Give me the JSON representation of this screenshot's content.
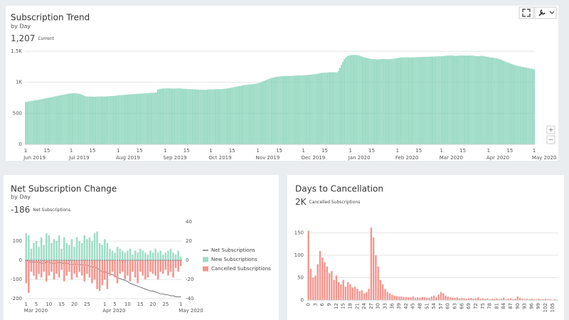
{
  "chart_data": [
    {
      "type": "bar",
      "title": "Subscription Trend",
      "subtitle": "by Day",
      "kpi": "1,207",
      "kpi_label": "Current",
      "color": "#7fd0b4",
      "grid": true,
      "ylim": [
        0,
        1500
      ],
      "yticks": [
        0,
        500,
        {
          "value": 1000,
          "label": "1K"
        },
        {
          "value": 1500,
          "label": "1.5K"
        }
      ],
      "xgroups": [
        {
          "label": "Jun 2019",
          "span": 30
        },
        {
          "label": "Jul 2019",
          "span": 31
        },
        {
          "label": "Aug 2019",
          "span": 31
        },
        {
          "label": "Sep 2019",
          "span": 30
        },
        {
          "label": "Oct 2019",
          "span": 31
        },
        {
          "label": "Nov 2019",
          "span": 30
        },
        {
          "label": "Dec 2019",
          "span": 31
        },
        {
          "label": "Jan 2020",
          "span": 31
        },
        {
          "label": "Feb 2020",
          "span": 29
        },
        {
          "label": "Mar 2020",
          "span": 31
        },
        {
          "label": "Apr 2020",
          "span": 30
        },
        {
          "label": "May 2020",
          "span": 1
        }
      ],
      "categories": [
        "1",
        null,
        null,
        null,
        null,
        null,
        null,
        null,
        null,
        null,
        null,
        null,
        null,
        null,
        "15",
        null,
        null,
        null,
        null,
        null,
        null,
        null,
        null,
        null,
        null,
        null,
        null,
        null,
        null,
        null,
        "1",
        null,
        null,
        null,
        null,
        null,
        null,
        null,
        null,
        null,
        null,
        null,
        null,
        null,
        "15",
        null,
        null,
        null,
        null,
        null,
        null,
        null,
        null,
        null,
        null,
        null,
        null,
        null,
        null,
        null,
        null,
        "1",
        null,
        null,
        null,
        null,
        null,
        null,
        null,
        null,
        null,
        null,
        null,
        null,
        null,
        "15",
        null,
        null,
        null,
        null,
        null,
        null,
        null,
        null,
        null,
        null,
        null,
        null,
        null,
        null,
        null,
        null,
        "1",
        null,
        null,
        null,
        null,
        null,
        null,
        null,
        null,
        null,
        null,
        null,
        null,
        null,
        "15",
        null,
        null,
        null,
        null,
        null,
        null,
        null,
        null,
        null,
        null,
        null,
        null,
        null,
        null,
        null,
        "1",
        null,
        null,
        null,
        null,
        null,
        null,
        null,
        null,
        null,
        null,
        null,
        null,
        null,
        "15",
        null,
        null,
        null,
        null,
        null,
        null,
        null,
        null,
        null,
        null,
        null,
        null,
        null,
        null,
        null,
        null,
        "1",
        null,
        null,
        null,
        null,
        null,
        null,
        null,
        null,
        null,
        null,
        null,
        null,
        null,
        "15",
        null,
        null,
        null,
        null,
        null,
        null,
        null,
        null,
        null,
        null,
        null,
        null,
        null,
        null,
        null,
        "1",
        null,
        null,
        null,
        null,
        null,
        null,
        null,
        null,
        null,
        null,
        null,
        null,
        null,
        "15",
        null,
        null,
        null,
        null,
        null,
        null,
        null,
        null,
        null,
        null,
        null,
        null,
        null,
        null,
        null,
        null,
        "1",
        null,
        null,
        null,
        null,
        null,
        null,
        null,
        null,
        null,
        null,
        null,
        null,
        null,
        "15",
        null,
        null,
        null,
        null,
        null,
        null,
        null,
        null,
        null,
        null,
        null,
        null,
        null,
        null,
        null,
        null,
        "1",
        null,
        null,
        null,
        null,
        null,
        null,
        null,
        null,
        null,
        null,
        null,
        null,
        null,
        "15",
        null,
        null,
        null,
        null,
        null,
        null,
        null,
        null,
        null,
        null,
        null,
        null,
        null,
        null,
        "1",
        null,
        null,
        null,
        null,
        null,
        null,
        null,
        null,
        null,
        null,
        null,
        null,
        null,
        "15",
        null,
        null,
        null,
        null,
        null,
        null,
        null,
        null,
        null,
        null,
        null,
        null,
        null,
        null,
        null,
        null,
        "1",
        null,
        null,
        null,
        null,
        null,
        null,
        null,
        null,
        null,
        null,
        null,
        null,
        null,
        "15",
        null,
        null,
        null,
        null,
        null,
        null,
        null,
        null,
        null,
        null,
        null,
        null,
        null,
        null,
        null,
        "1"
      ],
      "values": [
        680,
        685,
        690,
        695,
        700,
        705,
        710,
        712,
        715,
        720,
        725,
        730,
        735,
        740,
        745,
        750,
        755,
        760,
        765,
        770,
        775,
        780,
        785,
        790,
        795,
        800,
        805,
        810,
        815,
        820,
        820,
        822,
        825,
        822,
        820,
        815,
        810,
        800,
        790,
        780,
        775,
        772,
        770,
        770,
        770,
        768,
        768,
        770,
        770,
        772,
        772,
        770,
        770,
        772,
        775,
        775,
        778,
        780,
        780,
        782,
        785,
        788,
        790,
        792,
        795,
        798,
        800,
        802,
        805,
        805,
        808,
        810,
        810,
        812,
        815,
        815,
        818,
        820,
        820,
        822,
        825,
        825,
        828,
        830,
        830,
        832,
        835,
        880,
        890,
        895,
        898,
        900,
        900,
        902,
        902,
        900,
        900,
        898,
        898,
        900,
        900,
        902,
        900,
        898,
        895,
        895,
        892,
        890,
        890,
        888,
        888,
        885,
        885,
        882,
        882,
        880,
        880,
        880,
        878,
        880,
        882,
        885,
        885,
        885,
        888,
        888,
        890,
        890,
        888,
        890,
        892,
        895,
        898,
        900,
        905,
        910,
        915,
        920,
        925,
        930,
        935,
        940,
        945,
        950,
        955,
        958,
        960,
        962,
        965,
        968,
        970,
        975,
        980,
        985,
        990,
        1000,
        1010,
        1020,
        1030,
        1040,
        1050,
        1060,
        1070,
        1075,
        1080,
        1085,
        1090,
        1092,
        1095,
        1098,
        1100,
        1100,
        1102,
        1100,
        1100,
        1102,
        1105,
        1105,
        1108,
        1110,
        1110,
        1110,
        1112,
        1112,
        1115,
        1115,
        1118,
        1120,
        1122,
        1125,
        1128,
        1130,
        1135,
        1140,
        1145,
        1150,
        1152,
        1155,
        1155,
        1158,
        1160,
        1160,
        1160,
        1162,
        1160,
        1160,
        1180,
        1230,
        1280,
        1330,
        1370,
        1400,
        1420,
        1430,
        1435,
        1438,
        1440,
        1440,
        1438,
        1435,
        1430,
        1420,
        1410,
        1400,
        1395,
        1390,
        1385,
        1380,
        1375,
        1372,
        1370,
        1370,
        1368,
        1370,
        1372,
        1375,
        1375,
        1372,
        1370,
        1370,
        1372,
        1375,
        1378,
        1380,
        1385,
        1390,
        1395,
        1398,
        1400,
        1400,
        1400,
        1402,
        1402,
        1400,
        1400,
        1400,
        1402,
        1402,
        1405,
        1405,
        1405,
        1408,
        1408,
        1410,
        1410,
        1410,
        1412,
        1412,
        1415,
        1415,
        1415,
        1418,
        1418,
        1420,
        1420,
        1422,
        1425,
        1428,
        1430,
        1430,
        1432,
        1430,
        1428,
        1425,
        1425,
        1428,
        1430,
        1432,
        1432,
        1430,
        1428,
        1428,
        1430,
        1432,
        1430,
        1428,
        1425,
        1420,
        1420,
        1422,
        1425,
        1425,
        1420,
        1415,
        1410,
        1405,
        1400,
        1398,
        1395,
        1390,
        1385,
        1380,
        1372,
        1365,
        1355,
        1345,
        1335,
        1325,
        1315,
        1305,
        1295,
        1285,
        1278,
        1270,
        1265,
        1260,
        1255,
        1250,
        1245,
        1240,
        1235,
        1230,
        1225,
        1220,
        1215,
        1207
      ]
    },
    {
      "type": "combo",
      "title": "Net Subscription Change",
      "subtitle": "by Day",
      "kpi": "-186",
      "kpi_label": "Net Subscriptions",
      "grid": true,
      "ylim": [
        -200,
        200
      ],
      "yticks": [
        -200,
        -100,
        0,
        100
      ],
      "y2lim": [
        -40,
        40
      ],
      "y2ticks": [
        -40,
        -20,
        0,
        20,
        40
      ],
      "xgroups": [
        {
          "label": "Mar 2020",
          "span": 31
        },
        {
          "label": "Apr 2020",
          "span": 30
        },
        {
          "label": "May 2020",
          "span": 1
        }
      ],
      "categories": [
        "1",
        null,
        null,
        null,
        "5",
        null,
        null,
        null,
        null,
        "10",
        null,
        null,
        null,
        null,
        "15",
        null,
        null,
        null,
        null,
        "20",
        null,
        null,
        null,
        null,
        "25",
        null,
        null,
        null,
        null,
        null,
        null,
        "1",
        null,
        null,
        null,
        "5",
        null,
        null,
        null,
        null,
        "10",
        null,
        null,
        null,
        null,
        "15",
        null,
        null,
        null,
        null,
        "20",
        null,
        null,
        null,
        null,
        "25",
        null,
        null,
        null,
        null,
        null,
        "1"
      ],
      "series": [
        {
          "name": "Net Subscriptions",
          "color": "#555555",
          "axis": "y2",
          "values": [
            0,
            -1,
            -2,
            -2,
            -2,
            -2,
            -3,
            -3,
            -2,
            -2,
            -3,
            -3,
            -3,
            -2,
            -3,
            -3,
            -3,
            -4,
            -4,
            -4,
            -4,
            -4,
            -5,
            -5,
            -5,
            -6,
            -7,
            -7,
            -8,
            -10,
            -12,
            -12,
            -13,
            -14,
            -15,
            -16,
            -18,
            -19,
            -20,
            -21,
            -22,
            -24,
            -25,
            -26,
            -27,
            -28,
            -29,
            -30,
            -31,
            -32,
            -32,
            -33,
            -34,
            -35,
            -35,
            -36,
            -36,
            -37,
            -37,
            -38,
            -38,
            -38
          ]
        },
        {
          "name": "New Subscriptions",
          "color": "#9edcc6",
          "values": [
            140,
            130,
            60,
            90,
            100,
            70,
            120,
            80,
            140,
            130,
            90,
            110,
            100,
            130,
            60,
            120,
            90,
            80,
            110,
            70,
            120,
            100,
            90,
            130,
            110,
            120,
            100,
            140,
            150,
            90,
            80,
            110,
            90,
            60,
            50,
            40,
            70,
            60,
            50,
            40,
            50,
            60,
            30,
            50,
            40,
            60,
            50,
            40,
            30,
            50,
            40,
            60,
            40,
            50,
            30,
            40,
            50,
            60,
            40,
            30,
            50,
            20
          ]
        },
        {
          "name": "Cancelled Subscriptions",
          "color": "#f4948d",
          "values": [
            -120,
            -170,
            -60,
            -80,
            -100,
            -70,
            -90,
            -60,
            -110,
            -80,
            -60,
            -100,
            -70,
            -90,
            -50,
            -110,
            -80,
            -60,
            -100,
            -70,
            -90,
            -60,
            -80,
            -110,
            -70,
            -90,
            -120,
            -100,
            -150,
            -160,
            -130,
            -100,
            -150,
            -80,
            -60,
            -90,
            -120,
            -70,
            -60,
            -100,
            -80,
            -110,
            -60,
            -90,
            -120,
            -60,
            -80,
            -100,
            -90,
            -60,
            -70,
            -80,
            -100,
            -60,
            -70,
            -50,
            -80,
            -60,
            -90,
            -40,
            -60,
            -30
          ]
        }
      ]
    },
    {
      "type": "bar",
      "title": "Days to Cancellation",
      "kpi": "2K",
      "kpi_label": "Cancelled Subscriptions",
      "color": "#f4948d",
      "grid": true,
      "ylim": [
        0,
        170
      ],
      "yticks": [
        0,
        50,
        100,
        150
      ],
      "categories": [
        0,
        null,
        null,
        3,
        null,
        null,
        6,
        null,
        null,
        9,
        null,
        null,
        12,
        null,
        null,
        15,
        null,
        null,
        18,
        null,
        null,
        21,
        null,
        null,
        24,
        null,
        null,
        27,
        null,
        null,
        30,
        null,
        null,
        33,
        null,
        null,
        36,
        null,
        null,
        39,
        null,
        null,
        42,
        null,
        null,
        45,
        null,
        null,
        48,
        null,
        null,
        51,
        null,
        null,
        54,
        null,
        null,
        57,
        null,
        null,
        60,
        null,
        null,
        63,
        null,
        null,
        66,
        null,
        null,
        69,
        null,
        null,
        72,
        null,
        null,
        75,
        null,
        null,
        78,
        null,
        null,
        81,
        null,
        null,
        84,
        null,
        null,
        87,
        null,
        null,
        90,
        null,
        null,
        93,
        null,
        null,
        96,
        null,
        null,
        99,
        null,
        null,
        102,
        null,
        null,
        105,
        null,
        null
      ],
      "values": [
        155,
        70,
        50,
        55,
        80,
        110,
        95,
        85,
        75,
        60,
        65,
        45,
        55,
        40,
        35,
        45,
        30,
        40,
        35,
        28,
        30,
        25,
        20,
        22,
        15,
        18,
        25,
        162,
        140,
        100,
        75,
        45,
        35,
        25,
        18,
        15,
        12,
        10,
        9,
        8,
        8,
        7,
        7,
        6,
        6,
        8,
        5,
        6,
        5,
        7,
        6,
        5,
        5,
        8,
        10,
        6,
        12,
        18,
        15,
        10,
        8,
        6,
        5,
        5,
        6,
        4,
        5,
        4,
        3,
        4,
        5,
        3,
        4,
        6,
        3,
        4,
        3,
        4,
        2,
        3,
        3,
        4,
        2,
        3,
        5,
        2,
        3,
        4,
        2,
        3,
        8,
        5,
        3,
        2,
        3,
        2,
        3,
        2,
        2,
        3,
        2,
        2,
        3,
        2,
        2,
        1,
        2,
        1
      ]
    }
  ]
}
